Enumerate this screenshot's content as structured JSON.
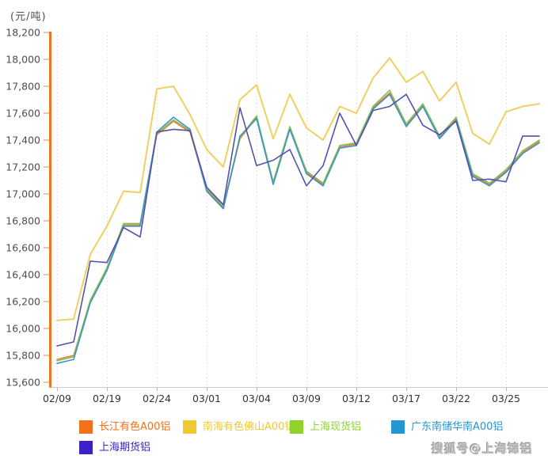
{
  "title": "(元/吨)",
  "watermark": "搜狐号@上海锦铝",
  "chart_data": {
    "type": "line",
    "title": "(元/吨)",
    "ylabel": "元/吨",
    "xlabel": "",
    "y_min": 15600,
    "y_max": 18200,
    "y_step": 200,
    "grid": "vertical-dotted",
    "legend_position": "bottom",
    "x": [
      "02/09",
      "02/10",
      "02/18",
      "02/19",
      "02/22",
      "02/23",
      "02/24",
      "02/25",
      "02/26",
      "03/01",
      "03/02",
      "03/03",
      "03/04",
      "03/05",
      "03/08",
      "03/09",
      "03/10",
      "03/11",
      "03/12",
      "03/15",
      "03/16",
      "03/17",
      "03/18",
      "03/19",
      "03/22",
      "03/23",
      "03/24",
      "03/25",
      "03/26",
      "03/29"
    ],
    "x_shown_tick_indices": [
      0,
      3,
      6,
      9,
      12,
      15,
      18,
      21,
      24,
      27
    ],
    "series": [
      {
        "name": "长江有色A00铝",
        "color": "#ee7f33",
        "legend_color": "#f3711a",
        "values": [
          15770,
          15800,
          16200,
          16440,
          16770,
          16770,
          17440,
          17540,
          17460,
          17030,
          16900,
          17410,
          17570,
          17080,
          17490,
          17160,
          17070,
          17350,
          17370,
          17640,
          17750,
          17510,
          17660,
          17420,
          17560,
          17140,
          17070,
          17170,
          17310,
          17390
        ]
      },
      {
        "name": "南海有色佛山A00铝",
        "color": "#f0d063",
        "legend_color": "#eec930",
        "values": [
          16060,
          16070,
          16550,
          16760,
          17020,
          17010,
          17780,
          17800,
          17590,
          17330,
          17200,
          17700,
          17810,
          17410,
          17740,
          17490,
          17400,
          17650,
          17600,
          17860,
          18010,
          17830,
          17910,
          17690,
          17830,
          17450,
          17370,
          17610,
          17650,
          17670
        ]
      },
      {
        "name": "上海现货铝",
        "color": "#84bf5a",
        "legend_color": "#8fd32a",
        "values": [
          15760,
          15790,
          16210,
          16450,
          16780,
          16780,
          17450,
          17550,
          17470,
          17040,
          16910,
          17420,
          17580,
          17090,
          17500,
          17170,
          17080,
          17360,
          17380,
          17650,
          17770,
          17520,
          17670,
          17430,
          17570,
          17150,
          17080,
          17180,
          17320,
          17400
        ]
      },
      {
        "name": "广东南储华南A00铝",
        "color": "#3e93c6",
        "legend_color": "#2496d2",
        "values": [
          15740,
          15770,
          16190,
          16430,
          16760,
          16760,
          17460,
          17570,
          17480,
          17020,
          16890,
          17430,
          17560,
          17070,
          17480,
          17150,
          17060,
          17340,
          17360,
          17630,
          17740,
          17500,
          17650,
          17410,
          17550,
          17130,
          17060,
          17160,
          17300,
          17380
        ]
      },
      {
        "name": "上海期货铝",
        "color": "#5551ac",
        "legend_color": "#3a22c8",
        "values": [
          15870,
          15900,
          16500,
          16490,
          16750,
          16680,
          17460,
          17480,
          17470,
          17050,
          16920,
          17640,
          17210,
          17250,
          17330,
          17060,
          17210,
          17600,
          17360,
          17620,
          17650,
          17740,
          17510,
          17440,
          17540,
          17100,
          17110,
          17090,
          17430,
          17430
        ]
      }
    ],
    "axis_colors": {
      "y_axis": "#ed7524",
      "y_tick": "#e9a05a",
      "x_axis": "#cccccc",
      "grid_line": "#dedede",
      "tick_label": "#4d4d4d"
    }
  }
}
